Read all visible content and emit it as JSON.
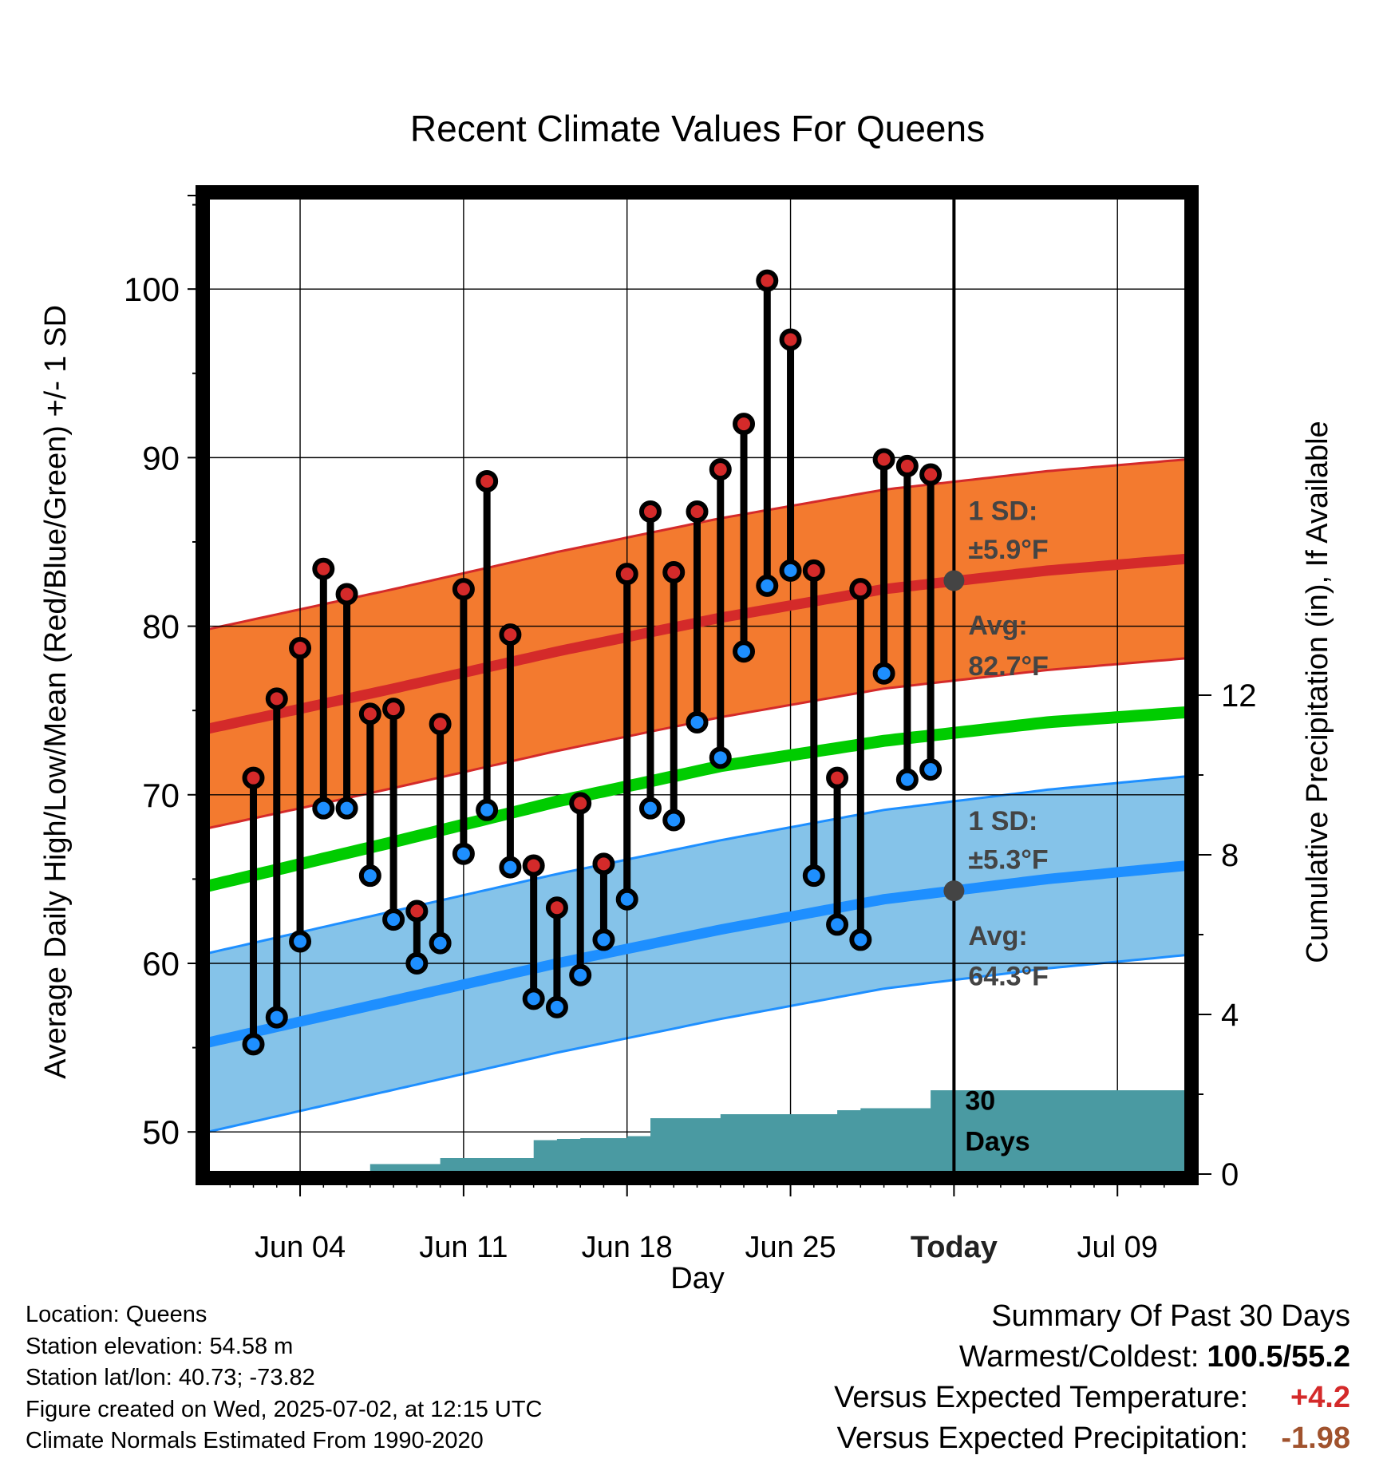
{
  "chart_data": {
    "type": "line",
    "title": "Recent Climate Values For Queens",
    "xlabel": "Day",
    "ylabel": "Average Daily High/Low/Mean (Red/Blue/Green) +/- 1 SD",
    "y2label": "Cumulative Precipitation (in), If Available",
    "ylim": [
      47.5,
      105.5
    ],
    "y_ticks": [
      50,
      60,
      70,
      80,
      90,
      100
    ],
    "y2_ticks": [
      0,
      4,
      8,
      12
    ],
    "y2lim": [
      0,
      24.5
    ],
    "x_range": [
      "2025-05-31",
      "2025-07-12"
    ],
    "x_ticks": [
      {
        "date": "2025-06-04",
        "label": "Jun 04"
      },
      {
        "date": "2025-06-11",
        "label": "Jun 11"
      },
      {
        "date": "2025-06-18",
        "label": "Jun 18"
      },
      {
        "date": "2025-06-25",
        "label": "Jun 25"
      },
      {
        "date": "2025-07-02",
        "label": "Today"
      },
      {
        "date": "2025-07-09",
        "label": "Jul 09"
      }
    ],
    "today": "2025-07-02",
    "colors": {
      "high": "#d42a2a",
      "high_band": "#f37a2f",
      "low": "#1e8fff",
      "low_band": "#85c3e9",
      "mean": "#00cc00",
      "precip": "#4a9aa2",
      "avg_marker": "#444444"
    },
    "daily": {
      "dates": [
        "2025-06-02",
        "2025-06-03",
        "2025-06-04",
        "2025-06-05",
        "2025-06-06",
        "2025-06-07",
        "2025-06-08",
        "2025-06-09",
        "2025-06-10",
        "2025-06-11",
        "2025-06-12",
        "2025-06-13",
        "2025-06-14",
        "2025-06-15",
        "2025-06-16",
        "2025-06-17",
        "2025-06-18",
        "2025-06-19",
        "2025-06-20",
        "2025-06-21",
        "2025-06-22",
        "2025-06-23",
        "2025-06-24",
        "2025-06-25",
        "2025-06-26",
        "2025-06-27",
        "2025-06-28",
        "2025-06-29",
        "2025-06-30",
        "2025-07-01"
      ],
      "high": [
        71.0,
        75.7,
        78.7,
        83.4,
        81.9,
        74.8,
        75.1,
        63.1,
        74.2,
        82.2,
        88.6,
        79.5,
        65.8,
        63.3,
        69.5,
        65.9,
        83.1,
        86.8,
        83.2,
        86.8,
        89.3,
        92.0,
        100.5,
        97.0,
        83.3,
        71.0,
        82.2,
        89.9,
        89.5,
        89.0
      ],
      "low": [
        55.2,
        56.8,
        61.3,
        69.2,
        69.2,
        65.2,
        62.6,
        60.0,
        61.2,
        66.5,
        69.1,
        65.7,
        57.9,
        57.4,
        59.3,
        61.4,
        63.8,
        69.2,
        68.5,
        74.3,
        72.2,
        78.5,
        82.4,
        83.3,
        65.2,
        62.3,
        61.4,
        77.2,
        70.9,
        71.5
      ]
    },
    "normals": {
      "dates": [
        "2025-06-01",
        "2025-06-08",
        "2025-06-15",
        "2025-06-22",
        "2025-06-29",
        "2025-07-06",
        "2025-07-12"
      ],
      "high_avg": [
        74.2,
        76.3,
        78.5,
        80.5,
        82.2,
        83.3,
        84.0
      ],
      "low_avg": [
        55.6,
        57.8,
        60.0,
        62.0,
        63.8,
        65.0,
        65.8
      ],
      "mean_avg": [
        64.9,
        67.2,
        69.6,
        71.7,
        73.2,
        74.3,
        74.9
      ],
      "high_sd": 5.9,
      "low_sd": 5.3
    },
    "precip": {
      "dates": [
        "2025-06-05",
        "2025-06-06",
        "2025-06-07",
        "2025-06-08",
        "2025-06-09",
        "2025-06-10",
        "2025-06-11",
        "2025-06-12",
        "2025-06-13",
        "2025-06-14",
        "2025-06-15",
        "2025-06-16",
        "2025-06-17",
        "2025-06-18",
        "2025-06-19",
        "2025-06-20",
        "2025-06-21",
        "2025-06-22",
        "2025-06-23",
        "2025-06-24",
        "2025-06-25",
        "2025-06-26",
        "2025-06-27",
        "2025-06-28",
        "2025-06-29",
        "2025-06-30",
        "2025-07-01",
        "2025-07-02",
        "2025-07-12"
      ],
      "values": [
        0.0,
        0.0,
        0.25,
        0.25,
        0.25,
        0.4,
        0.4,
        0.4,
        0.4,
        0.85,
        0.88,
        0.9,
        0.9,
        0.95,
        1.4,
        1.4,
        1.4,
        1.5,
        1.5,
        1.5,
        1.5,
        1.5,
        1.6,
        1.65,
        1.65,
        1.65,
        2.1,
        2.1,
        2.1
      ]
    },
    "annotations": {
      "high_sd_label": [
        "1 SD:",
        "±5.9°F"
      ],
      "high_avg_label": [
        "Avg:",
        "82.7°F"
      ],
      "low_sd_label": [
        "1 SD:",
        "±5.3°F"
      ],
      "low_avg_label": [
        "Avg:",
        "64.3°F"
      ],
      "high_avg_today": 82.7,
      "low_avg_today": 64.3,
      "precip_label": [
        "30",
        "Days"
      ]
    }
  },
  "footer": {
    "location": "Location: Queens",
    "elevation": "Station elevation: 54.58 m",
    "latlon": "Station lat/lon: 40.73; -73.82",
    "created": "Figure created on Wed, 2025-07-02, at 12:15 UTC",
    "normals": "Climate Normals Estimated From 1990-2020"
  },
  "summary": {
    "title": "Summary Of Past 30 Days",
    "warm_cold_label": "Warmest/Coldest:",
    "warm_cold_value": "100.5/55.2",
    "temp_label": "Versus Expected Temperature:",
    "temp_value": "+4.2",
    "temp_color": "#d42a2a",
    "precip_label": "Versus Expected Precipitation:",
    "precip_value": "-1.98",
    "precip_color": "#a0522d"
  }
}
